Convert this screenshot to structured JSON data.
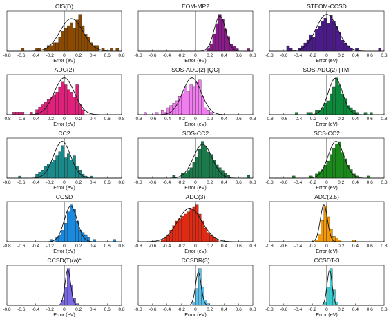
{
  "figure": {
    "axis_label": "Error (eV)"
  },
  "chart_data": [
    {
      "type": "bar",
      "title": "CIS(D)",
      "color": "#8B4A00",
      "xlabel": "Error (eV)",
      "xlim": [
        -0.8,
        0.8
      ],
      "xticks": [
        "-0.8",
        "-0.6",
        "-0.4",
        "-0.2",
        "0",
        "0.2",
        "0.4",
        "0.6",
        "0.8"
      ],
      "bin_width": 0.04,
      "bins": [
        [
          -0.6,
          1
        ],
        [
          -0.4,
          1
        ],
        [
          -0.36,
          1
        ],
        [
          -0.28,
          1
        ],
        [
          -0.24,
          2
        ],
        [
          -0.2,
          2
        ],
        [
          -0.16,
          3
        ],
        [
          -0.12,
          3
        ],
        [
          -0.08,
          5
        ],
        [
          -0.04,
          7
        ],
        [
          0.0,
          8
        ],
        [
          0.04,
          9
        ],
        [
          0.08,
          10
        ],
        [
          0.12,
          8
        ],
        [
          0.16,
          11
        ],
        [
          0.2,
          13
        ],
        [
          0.24,
          9
        ],
        [
          0.28,
          6
        ],
        [
          0.32,
          5
        ],
        [
          0.36,
          3
        ],
        [
          0.4,
          2
        ],
        [
          0.44,
          2
        ],
        [
          0.52,
          1
        ],
        [
          0.64,
          1
        ],
        [
          0.72,
          1
        ]
      ],
      "fit": {
        "mu": 0.1,
        "sigma": 0.16
      }
    },
    {
      "type": "bar",
      "title": "EOM-MP2",
      "color": "#8B1A8B",
      "xlabel": "Error (eV)",
      "xlim": [
        -0.8,
        0.8
      ],
      "xticks": [
        "-0.8",
        "-0.6",
        "-0.4",
        "-0.2",
        "0",
        "0.2",
        "0.4",
        "0.6",
        "0.8"
      ],
      "bin_width": 0.04,
      "bins": [
        [
          0.16,
          1
        ],
        [
          0.2,
          3
        ],
        [
          0.24,
          7
        ],
        [
          0.28,
          11
        ],
        [
          0.32,
          15
        ],
        [
          0.36,
          13
        ],
        [
          0.4,
          9
        ],
        [
          0.44,
          6
        ],
        [
          0.48,
          3
        ],
        [
          0.52,
          2
        ],
        [
          0.56,
          1
        ],
        [
          0.72,
          1
        ]
      ],
      "fit": {
        "mu": 0.34,
        "sigma": 0.08
      }
    },
    {
      "type": "bar",
      "title": "STEOM-CCSD",
      "color": "#4B1A8B",
      "xlabel": "Error (eV)",
      "xlim": [
        -0.8,
        0.8
      ],
      "xticks": [
        "-0.8",
        "-0.6",
        "-0.4",
        "-0.2",
        "0",
        "0.2",
        "0.4",
        "0.6",
        "0.8"
      ],
      "bin_width": 0.04,
      "bins": [
        [
          -0.56,
          2
        ],
        [
          -0.52,
          1
        ],
        [
          -0.4,
          1
        ],
        [
          -0.36,
          2
        ],
        [
          -0.32,
          3
        ],
        [
          -0.28,
          4
        ],
        [
          -0.24,
          6
        ],
        [
          -0.2,
          5
        ],
        [
          -0.16,
          8
        ],
        [
          -0.12,
          9
        ],
        [
          -0.08,
          11
        ],
        [
          -0.04,
          12
        ],
        [
          0.0,
          10
        ],
        [
          0.04,
          13
        ],
        [
          0.08,
          11
        ],
        [
          0.12,
          9
        ],
        [
          0.16,
          7
        ],
        [
          0.2,
          4
        ],
        [
          0.24,
          3
        ],
        [
          0.28,
          2
        ],
        [
          0.32,
          1
        ],
        [
          0.4,
          1
        ],
        [
          0.72,
          1
        ]
      ],
      "fit": {
        "mu": 0.0,
        "sigma": 0.15
      }
    },
    {
      "type": "bar",
      "title": "ADC(2)",
      "color": "#E0207A",
      "xlabel": "Error (eV)",
      "xlim": [
        -0.8,
        0.8
      ],
      "xticks": [
        "-0.8",
        "-0.6",
        "-0.4",
        "-0.2",
        "0",
        "0.2",
        "0.4",
        "0.6",
        "0.8"
      ],
      "bin_width": 0.04,
      "bins": [
        [
          -0.72,
          1
        ],
        [
          -0.68,
          1
        ],
        [
          -0.64,
          1
        ],
        [
          -0.6,
          1
        ],
        [
          -0.48,
          1
        ],
        [
          -0.4,
          2
        ],
        [
          -0.36,
          3
        ],
        [
          -0.32,
          4
        ],
        [
          -0.28,
          5
        ],
        [
          -0.24,
          6
        ],
        [
          -0.2,
          7
        ],
        [
          -0.16,
          8
        ],
        [
          -0.12,
          9
        ],
        [
          -0.08,
          11
        ],
        [
          -0.04,
          13
        ],
        [
          0.0,
          12
        ],
        [
          0.04,
          10
        ],
        [
          0.08,
          9
        ],
        [
          0.12,
          7
        ],
        [
          0.16,
          12
        ],
        [
          0.2,
          4
        ],
        [
          0.24,
          2
        ]
      ],
      "fit": {
        "mu": 0.0,
        "sigma": 0.14
      }
    },
    {
      "type": "bar",
      "title": "SOS-ADC(2) [QC]",
      "color": "#F07CF0",
      "xlabel": "Error (eV)",
      "xlim": [
        -0.8,
        0.8
      ],
      "xticks": [
        "-0.8",
        "-0.6",
        "-0.4",
        "-0.2",
        "0",
        "0.2",
        "0.4",
        "0.6",
        "0.8"
      ],
      "bin_width": 0.04,
      "bins": [
        [
          -0.72,
          1
        ],
        [
          -0.56,
          1
        ],
        [
          -0.48,
          2
        ],
        [
          -0.44,
          1
        ],
        [
          -0.4,
          3
        ],
        [
          -0.36,
          4
        ],
        [
          -0.32,
          5
        ],
        [
          -0.28,
          6
        ],
        [
          -0.24,
          8
        ],
        [
          -0.2,
          9
        ],
        [
          -0.16,
          12
        ],
        [
          -0.12,
          10
        ],
        [
          -0.08,
          13
        ],
        [
          -0.04,
          12
        ],
        [
          0.0,
          14
        ],
        [
          0.04,
          15
        ],
        [
          0.08,
          8
        ],
        [
          0.12,
          3
        ],
        [
          0.16,
          2
        ],
        [
          0.2,
          1
        ]
      ],
      "fit": {
        "mu": -0.05,
        "sigma": 0.13
      }
    },
    {
      "type": "bar",
      "title": "SOS-ADC(2) [TM]",
      "color": "#0A8A3A",
      "xlabel": "Error (eV)",
      "xlim": [
        -0.8,
        0.8
      ],
      "xticks": [
        "-0.8",
        "-0.6",
        "-0.4",
        "-0.2",
        "0",
        "0.2",
        "0.4",
        "0.6",
        "0.8"
      ],
      "bin_width": 0.04,
      "bins": [
        [
          -0.44,
          1
        ],
        [
          -0.28,
          1
        ],
        [
          -0.24,
          1
        ],
        [
          -0.16,
          2
        ],
        [
          -0.12,
          2
        ],
        [
          -0.08,
          3
        ],
        [
          -0.04,
          5
        ],
        [
          0.0,
          6
        ],
        [
          0.04,
          9
        ],
        [
          0.08,
          12
        ],
        [
          0.12,
          16
        ],
        [
          0.16,
          13
        ],
        [
          0.2,
          9
        ],
        [
          0.24,
          7
        ],
        [
          0.28,
          4
        ],
        [
          0.32,
          3
        ],
        [
          0.36,
          2
        ],
        [
          0.4,
          1
        ],
        [
          0.52,
          1
        ],
        [
          0.6,
          1
        ]
      ],
      "fit": {
        "mu": 0.12,
        "sigma": 0.1
      }
    },
    {
      "type": "bar",
      "title": "CC2",
      "color": "#1A8A8A",
      "xlabel": "Error (eV)",
      "xlim": [
        -0.8,
        0.8
      ],
      "xticks": [
        "-0.8",
        "-0.6",
        "-0.4",
        "-0.2",
        "0",
        "0.2",
        "0.4",
        "0.6",
        "0.8"
      ],
      "bin_width": 0.04,
      "bins": [
        [
          -0.64,
          1
        ],
        [
          -0.4,
          2
        ],
        [
          -0.36,
          3
        ],
        [
          -0.32,
          4
        ],
        [
          -0.28,
          6
        ],
        [
          -0.24,
          7
        ],
        [
          -0.2,
          8
        ],
        [
          -0.16,
          9
        ],
        [
          -0.12,
          11
        ],
        [
          -0.08,
          13
        ],
        [
          -0.04,
          16
        ],
        [
          0.0,
          10
        ],
        [
          0.04,
          12
        ],
        [
          0.08,
          9
        ],
        [
          0.12,
          11
        ],
        [
          0.16,
          6
        ],
        [
          0.2,
          4
        ],
        [
          0.24,
          2
        ],
        [
          0.28,
          1
        ],
        [
          0.36,
          1
        ]
      ],
      "fit": {
        "mu": -0.03,
        "sigma": 0.12
      }
    },
    {
      "type": "bar",
      "title": "SOS-CC2",
      "color": "#1A7A4A",
      "xlabel": "Error (eV)",
      "xlim": [
        -0.8,
        0.8
      ],
      "xticks": [
        "-0.8",
        "-0.6",
        "-0.4",
        "-0.2",
        "0",
        "0.2",
        "0.4",
        "0.6",
        "0.8"
      ],
      "bin_width": 0.04,
      "bins": [
        [
          -0.32,
          1
        ],
        [
          -0.2,
          2
        ],
        [
          -0.16,
          2
        ],
        [
          -0.12,
          3
        ],
        [
          -0.08,
          4
        ],
        [
          -0.04,
          6
        ],
        [
          0.0,
          8
        ],
        [
          0.04,
          11
        ],
        [
          0.08,
          14
        ],
        [
          0.12,
          12
        ],
        [
          0.16,
          10
        ],
        [
          0.2,
          9
        ],
        [
          0.24,
          7
        ],
        [
          0.28,
          5
        ],
        [
          0.32,
          4
        ],
        [
          0.36,
          3
        ],
        [
          0.4,
          2
        ],
        [
          0.44,
          1
        ],
        [
          0.72,
          1
        ]
      ],
      "fit": {
        "mu": 0.1,
        "sigma": 0.13
      }
    },
    {
      "type": "bar",
      "title": "SCS-CC2",
      "color": "#1A8A1A",
      "xlabel": "Error (eV)",
      "xlim": [
        -0.8,
        0.8
      ],
      "xticks": [
        "-0.8",
        "-0.6",
        "-0.4",
        "-0.2",
        "0",
        "0.2",
        "0.4",
        "0.6",
        "0.8"
      ],
      "bin_width": 0.04,
      "bins": [
        [
          -0.48,
          1
        ],
        [
          -0.24,
          1
        ],
        [
          -0.16,
          2
        ],
        [
          -0.12,
          3
        ],
        [
          -0.08,
          4
        ],
        [
          -0.04,
          6
        ],
        [
          0.0,
          8
        ],
        [
          0.04,
          11
        ],
        [
          0.08,
          14
        ],
        [
          0.12,
          16
        ],
        [
          0.16,
          17
        ],
        [
          0.2,
          12
        ],
        [
          0.24,
          9
        ],
        [
          0.28,
          6
        ],
        [
          0.32,
          4
        ],
        [
          0.36,
          2
        ],
        [
          0.4,
          1
        ],
        [
          0.56,
          1
        ]
      ],
      "fit": {
        "mu": 0.13,
        "sigma": 0.11
      }
    },
    {
      "type": "bar",
      "title": "CCSD",
      "color": "#1A8AE0",
      "xlabel": "Error (eV)",
      "xlim": [
        -0.8,
        0.8
      ],
      "xticks": [
        "-0.8",
        "-0.6",
        "-0.4",
        "-0.2",
        "0",
        "0.2",
        "0.4",
        "0.6",
        "0.8"
      ],
      "bin_width": 0.04,
      "bins": [
        [
          -0.2,
          1
        ],
        [
          -0.12,
          2
        ],
        [
          -0.08,
          3
        ],
        [
          -0.04,
          5
        ],
        [
          0.0,
          8
        ],
        [
          0.04,
          13
        ],
        [
          0.08,
          16
        ],
        [
          0.12,
          14
        ],
        [
          0.16,
          9
        ],
        [
          0.2,
          5
        ],
        [
          0.24,
          4
        ],
        [
          0.28,
          3
        ],
        [
          0.32,
          2
        ],
        [
          0.4,
          1
        ],
        [
          0.68,
          1
        ]
      ],
      "fit": {
        "mu": 0.09,
        "sigma": 0.09
      }
    },
    {
      "type": "bar",
      "title": "ADC(3)",
      "color": "#E02A14",
      "xlabel": "Error (eV)",
      "xlim": [
        -0.8,
        0.8
      ],
      "xticks": [
        "-0.8",
        "-0.6",
        "-0.4",
        "-0.2",
        "0",
        "0.2",
        "0.4",
        "0.6",
        "0.8"
      ],
      "bin_width": 0.04,
      "bins": [
        [
          -0.48,
          1
        ],
        [
          -0.44,
          2
        ],
        [
          -0.4,
          3
        ],
        [
          -0.36,
          5
        ],
        [
          -0.32,
          7
        ],
        [
          -0.28,
          9
        ],
        [
          -0.24,
          10
        ],
        [
          -0.2,
          11
        ],
        [
          -0.16,
          12
        ],
        [
          -0.12,
          13
        ],
        [
          -0.08,
          14
        ],
        [
          -0.04,
          15
        ],
        [
          0.0,
          16
        ],
        [
          0.04,
          12
        ],
        [
          0.08,
          9
        ],
        [
          0.12,
          6
        ],
        [
          0.16,
          4
        ],
        [
          0.2,
          3
        ],
        [
          0.24,
          2
        ],
        [
          0.28,
          1
        ]
      ],
      "fit": {
        "mu": -0.08,
        "sigma": 0.17
      }
    },
    {
      "type": "bar",
      "title": "ADC(2.5)",
      "color": "#F59A0A",
      "xlabel": "Error (eV)",
      "xlim": [
        -0.8,
        0.8
      ],
      "xticks": [
        "-0.8",
        "-0.6",
        "-0.4",
        "-0.2",
        "0",
        "0.2",
        "0.4",
        "0.6",
        "0.8"
      ],
      "bin_width": 0.04,
      "bins": [
        [
          -0.16,
          1
        ],
        [
          -0.12,
          4
        ],
        [
          -0.08,
          12
        ],
        [
          -0.04,
          20
        ],
        [
          0.0,
          14
        ],
        [
          0.04,
          7
        ],
        [
          0.08,
          3
        ],
        [
          0.12,
          2
        ],
        [
          0.16,
          1
        ],
        [
          0.36,
          1
        ]
      ],
      "fit": {
        "mu": -0.04,
        "sigma": 0.05
      }
    },
    {
      "type": "bar",
      "title": "CCSD(T)(a)*",
      "color": "#7A6AE8",
      "xlabel": "Error (eV)",
      "xlim": [
        -0.8,
        0.8
      ],
      "xticks": [
        "-0.8",
        "-0.6",
        "-0.4",
        "-0.2",
        "0",
        "0.2",
        "0.4",
        "0.6",
        "0.8"
      ],
      "bin_width": 0.04,
      "bins": [
        [
          -0.04,
          3
        ],
        [
          0.0,
          11
        ],
        [
          0.04,
          22
        ],
        [
          0.08,
          12
        ],
        [
          0.12,
          4
        ],
        [
          0.16,
          1
        ]
      ],
      "fit": {
        "mu": 0.05,
        "sigma": 0.04
      }
    },
    {
      "type": "bar",
      "title": "CCSDR(3)",
      "color": "#5AC0EA",
      "xlabel": "Error (eV)",
      "xlim": [
        -0.8,
        0.8
      ],
      "xticks": [
        "-0.8",
        "-0.6",
        "-0.4",
        "-0.2",
        "0",
        "0.2",
        "0.4",
        "0.6",
        "0.8"
      ],
      "bin_width": 0.04,
      "bins": [
        [
          -0.04,
          2
        ],
        [
          0.0,
          10
        ],
        [
          0.04,
          22
        ],
        [
          0.08,
          11
        ],
        [
          0.12,
          3
        ],
        [
          0.16,
          1
        ]
      ],
      "fit": {
        "mu": 0.04,
        "sigma": 0.04
      }
    },
    {
      "type": "bar",
      "title": "CCSDT-3",
      "color": "#3ACCD0",
      "xlabel": "Error (eV)",
      "xlim": [
        -0.8,
        0.8
      ],
      "xticks": [
        "-0.8",
        "-0.6",
        "-0.4",
        "-0.2",
        "0",
        "0.2",
        "0.4",
        "0.6",
        "0.8"
      ],
      "bin_width": 0.04,
      "bins": [
        [
          -0.04,
          2
        ],
        [
          0.0,
          12
        ],
        [
          0.04,
          24
        ],
        [
          0.08,
          10
        ],
        [
          0.12,
          2
        ]
      ],
      "fit": {
        "mu": 0.04,
        "sigma": 0.035
      }
    }
  ]
}
